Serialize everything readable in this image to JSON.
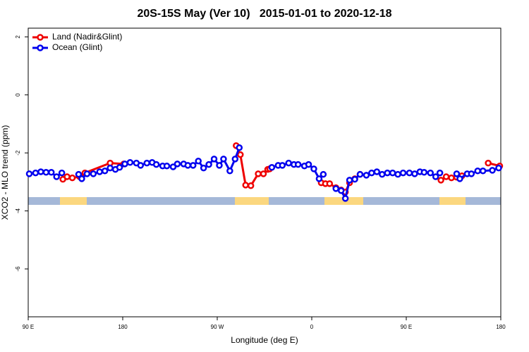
{
  "chart_data": {
    "type": "line",
    "title": "20S-15S May (Ver 10)   2015-01-01 to 2020-12-18",
    "xlabel": "Longitude (deg E)",
    "ylabel": "XCO2 - MLO trend (ppm)",
    "xlim": [
      90,
      540
    ],
    "ylim": [
      -7.65,
      2.3
    ],
    "xticks": [
      {
        "value": 90,
        "label": "90 E"
      },
      180,
      {
        "value": 270,
        "label": "90 W"
      },
      {
        "value": 360,
        "label": "0"
      },
      {
        "value": 450,
        "label": "90 E"
      },
      {
        "value": 540,
        "label": "180"
      }
    ],
    "yticks": [
      2,
      0,
      -2,
      -4,
      -6
    ],
    "legend": "top-left",
    "series": [
      {
        "name": "Land (Nadir&Glint)",
        "color": "#ee0000",
        "x": [
          123,
          127,
          132,
          139,
          144,
          168,
          181,
          null,
          288,
          292,
          297,
          302,
          309,
          314,
          318,
          320,
          null,
          369,
          373,
          377,
          383,
          388,
          392,
          396,
          401,
          406,
          null,
          483,
          488,
          493,
          498,
          503,
          null,
          528,
          539
        ],
        "values": [
          -2.91,
          -2.82,
          -2.86,
          -2.82,
          -2.69,
          -2.35,
          -2.38,
          null,
          -1.75,
          -2.06,
          -3.11,
          -3.13,
          -2.72,
          -2.72,
          -2.57,
          -2.55,
          null,
          -3.03,
          -3.06,
          -3.06,
          -3.2,
          -3.28,
          -3.35,
          -3.03,
          -2.89,
          -2.74,
          null,
          -2.94,
          -2.82,
          -2.86,
          -2.84,
          -2.79,
          null,
          -2.35,
          -2.45
        ]
      },
      {
        "name": "Ocean (Glint)",
        "color": "#0000ee",
        "x": [
          91,
          97,
          102,
          107,
          112,
          117,
          122,
          null,
          138,
          141,
          146,
          152,
          158,
          163,
          168,
          173,
          177,
          182,
          187,
          193,
          197,
          203,
          208,
          212,
          218,
          222,
          228,
          232,
          238,
          242,
          247,
          252,
          257,
          262,
          267,
          272,
          276,
          282,
          287,
          291,
          null,
          322,
          328,
          332,
          338,
          343,
          347,
          353,
          357,
          362,
          367,
          371,
          null,
          383,
          388,
          392,
          396,
          401,
          406,
          412,
          417,
          422,
          427,
          432,
          437,
          442,
          447,
          453,
          458,
          463,
          467,
          473,
          478,
          482,
          null,
          498,
          501,
          508,
          512,
          518,
          523,
          532,
          538
        ],
        "values": [
          -2.72,
          -2.69,
          -2.65,
          -2.67,
          -2.67,
          -2.82,
          -2.69,
          null,
          -2.74,
          -2.89,
          -2.72,
          -2.72,
          -2.65,
          -2.62,
          -2.52,
          -2.57,
          -2.5,
          -2.38,
          -2.33,
          -2.35,
          -2.43,
          -2.35,
          -2.33,
          -2.4,
          -2.45,
          -2.45,
          -2.48,
          -2.38,
          -2.38,
          -2.43,
          -2.43,
          -2.28,
          -2.52,
          -2.4,
          -2.21,
          -2.43,
          -2.21,
          -2.62,
          -2.21,
          -1.82,
          null,
          -2.5,
          -2.43,
          -2.43,
          -2.35,
          -2.4,
          -2.4,
          -2.45,
          -2.4,
          -2.55,
          -2.89,
          -2.74,
          null,
          -3.23,
          -3.3,
          -3.57,
          -2.94,
          -2.91,
          -2.74,
          -2.77,
          -2.69,
          -2.65,
          -2.74,
          -2.69,
          -2.69,
          -2.74,
          -2.69,
          -2.69,
          -2.72,
          -2.65,
          -2.67,
          -2.69,
          -2.82,
          -2.69,
          null,
          -2.72,
          -2.89,
          -2.72,
          -2.72,
          -2.62,
          -2.62,
          -2.6,
          -2.52
        ]
      }
    ]
  }
}
